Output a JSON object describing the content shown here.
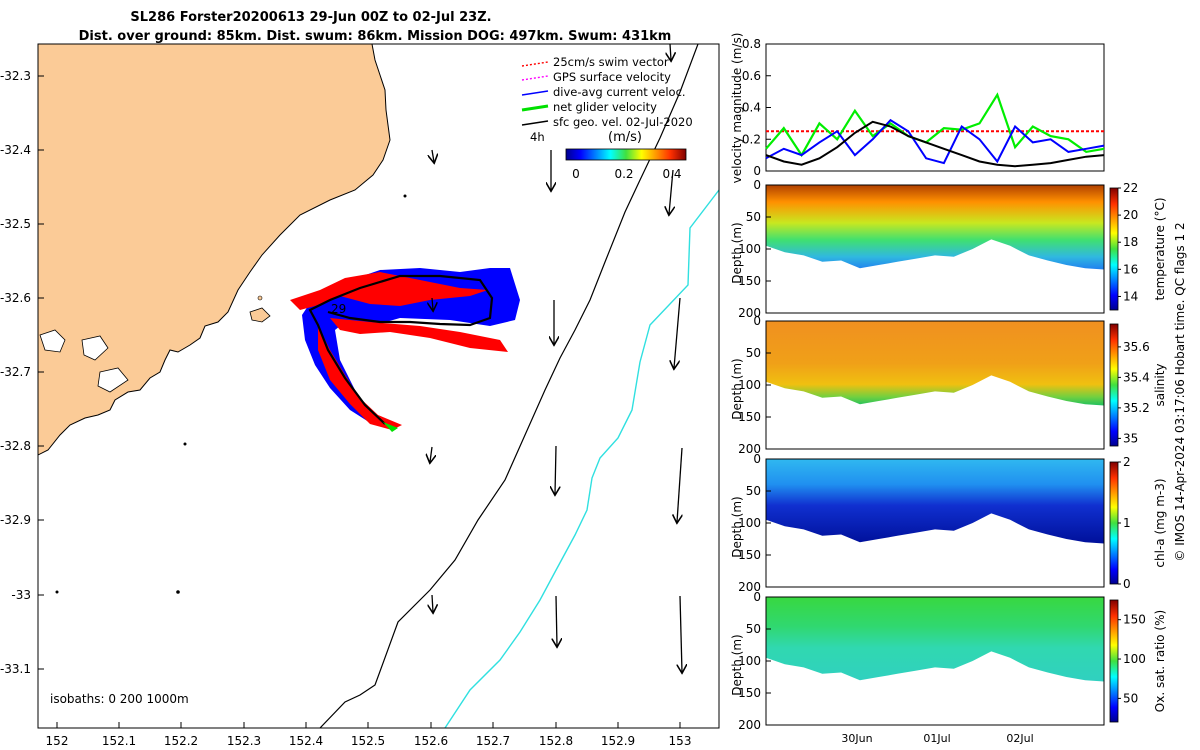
{
  "title": {
    "line1": "SL286 Forster20200613 29-Jun 00Z to 02-Jul 23Z.",
    "line2": "Dist. over ground: 85km. Dist. swum: 86km. Mission DOG: 497km. Swum: 431km"
  },
  "map": {
    "lon_ticks": [
      "152",
      "152.1",
      "152.2",
      "152.3",
      "152.4",
      "152.5",
      "152.6",
      "152.7",
      "152.8",
      "152.9",
      "153"
    ],
    "lat_ticks": [
      "-32.3",
      "-32.4",
      "-32.5",
      "-32.6",
      "-32.7",
      "-32.8",
      "-32.9",
      "-33",
      "-33.1"
    ],
    "xlim": [
      151.96,
      153.06
    ],
    "ylim": [
      -33.17,
      -32.23
    ],
    "legend": [
      {
        "label": "25cm/s swim vector",
        "color": "#ff0000",
        "style": "dotted-arrow"
      },
      {
        "label": "GPS surface velocity",
        "color": "#ff00ff",
        "style": "dotted-arrow"
      },
      {
        "label": "dive-avg current veloc.",
        "color": "#0000ff",
        "style": "arrow"
      },
      {
        "label": "net glider velocity",
        "color": "#00e000",
        "style": "thick-arrow"
      },
      {
        "label": "sfc geo. vel. 02-Jul-2020",
        "color": "#000000",
        "style": "arrow"
      }
    ],
    "scale_label": "4h",
    "colorbar_title": "(m/s)",
    "colorbar_ticks": [
      "0",
      "0.2",
      "0.4"
    ],
    "colorbar_range": [
      0,
      0.5
    ],
    "track_label": "29",
    "isobath_label": "isobaths: 0   200  1000m",
    "land_color": "#fbcb97",
    "isobath_200_color": "#000000",
    "isobath_1000_color": "#30e0e0"
  },
  "chart_data": [
    {
      "type": "line",
      "title": "",
      "xlabel": "",
      "ylabel": "velocity magnitude (m/s)",
      "ylim": [
        0,
        0.8
      ],
      "yticks": [
        "0",
        "0.2",
        "0.4",
        "0.6",
        "0.8"
      ],
      "series": [
        {
          "color": "#ff0000",
          "values": [
            0.25,
            0.25,
            0.25,
            0.25,
            0.25,
            0.25,
            0.25,
            0.25,
            0.25,
            0.25,
            0.25,
            0.25,
            0.25
          ]
        },
        {
          "color": "#00ee00",
          "values": [
            0.14,
            0.27,
            0.1,
            0.3,
            0.2,
            0.38,
            0.22,
            0.3,
            0.22,
            0.18,
            0.27,
            0.26,
            0.3,
            0.48,
            0.15,
            0.28,
            0.22,
            0.2,
            0.12,
            0.14
          ]
        },
        {
          "color": "#0000ff",
          "values": [
            0.08,
            0.14,
            0.1,
            0.18,
            0.25,
            0.1,
            0.2,
            0.32,
            0.25,
            0.08,
            0.05,
            0.28,
            0.2,
            0.06,
            0.28,
            0.18,
            0.2,
            0.12,
            0.14,
            0.16
          ]
        },
        {
          "color": "#000000",
          "values": [
            0.1,
            0.06,
            0.04,
            0.08,
            0.15,
            0.24,
            0.31,
            0.28,
            0.22,
            0.18,
            0.14,
            0.1,
            0.06,
            0.04,
            0.03,
            0.04,
            0.05,
            0.07,
            0.09,
            0.1
          ]
        }
      ]
    },
    {
      "type": "heatmap",
      "ylabel": "Depth (m)",
      "yticks": [
        "0",
        "50",
        "100",
        "150",
        "200"
      ],
      "ylim": [
        200,
        0
      ],
      "colorbar_label": "temperature (°C)",
      "colorbar_ticks": [
        "14",
        "16",
        "18",
        "20",
        "22"
      ],
      "colorbar_range": [
        13,
        22
      ],
      "bottom_depth": [
        95,
        105,
        110,
        120,
        118,
        130,
        125,
        120,
        115,
        110,
        112,
        100,
        85,
        95,
        110,
        118,
        125,
        130,
        132
      ],
      "surface_value": 21.5,
      "deep_value": 15.5
    },
    {
      "type": "heatmap",
      "ylabel": "Depth (m)",
      "yticks": [
        "0",
        "50",
        "100",
        "150",
        "200"
      ],
      "ylim": [
        200,
        0
      ],
      "colorbar_label": "salinity",
      "colorbar_ticks": [
        "35",
        "35.2",
        "35.4",
        "35.6"
      ],
      "colorbar_range": [
        34.95,
        35.75
      ],
      "bottom_depth": [
        95,
        105,
        110,
        120,
        118,
        130,
        125,
        120,
        115,
        110,
        112,
        100,
        85,
        95,
        110,
        118,
        125,
        130,
        132
      ],
      "surface_value": 35.55,
      "deep_value": 35.3
    },
    {
      "type": "heatmap",
      "ylabel": "Depth (m)",
      "yticks": [
        "0",
        "50",
        "100",
        "150",
        "200"
      ],
      "ylim": [
        200,
        0
      ],
      "colorbar_label": "chl-a (mg m-3)",
      "colorbar_ticks": [
        "0",
        "1",
        "2"
      ],
      "colorbar_range": [
        0,
        2
      ],
      "bottom_depth": [
        95,
        105,
        110,
        120,
        118,
        130,
        125,
        120,
        115,
        110,
        112,
        100,
        85,
        95,
        110,
        118,
        125,
        130,
        132
      ],
      "surface_value": 0.9,
      "deep_value": 0.1
    },
    {
      "type": "heatmap",
      "ylabel": "Depth (m)",
      "yticks": [
        "0",
        "50",
        "100",
        "150",
        "200"
      ],
      "ylim": [
        200,
        0
      ],
      "colorbar_label": "Ox. sat. ratio (%)",
      "colorbar_ticks": [
        "50",
        "100",
        "150"
      ],
      "colorbar_range": [
        20,
        175
      ],
      "bottom_depth": [
        95,
        105,
        110,
        120,
        118,
        130,
        125,
        120,
        115,
        110,
        112,
        100,
        85,
        95,
        110,
        118,
        125,
        130,
        132
      ],
      "surface_value": 105,
      "deep_value": 92
    }
  ],
  "time_axis": {
    "ticks": [
      "30Jun",
      "01Jul",
      "02Jul"
    ]
  },
  "side_note": "© IMOS 14-Apr-2024 03:17:06 Hobart time. QC flags 1  2"
}
